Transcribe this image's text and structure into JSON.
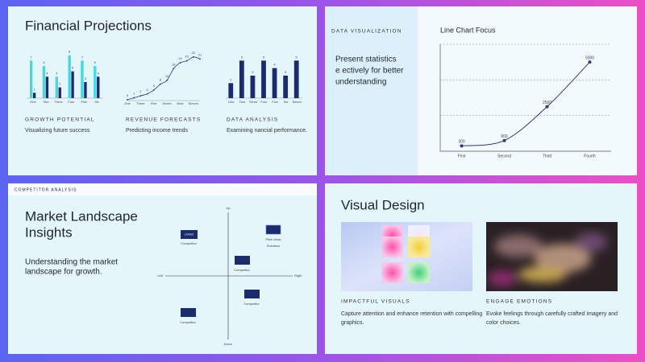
{
  "financial_slide": {
    "title": "Financial Projections",
    "panels": [
      {
        "heading": "GROWTH POTENTIAL",
        "text": "Visualizing future success"
      },
      {
        "heading": "REVENUE FORECASTS",
        "text": "Predicting income trends"
      },
      {
        "heading": "DATA ANALYSIS",
        "text": "Examining nancial performance."
      }
    ]
  },
  "visualization_slide": {
    "label": "DATA VISUALIZATION",
    "text_lines": [
      "Present statistics",
      "e ectively for better",
      "understanding"
    ]
  },
  "chart_data": [
    {
      "type": "bar",
      "categories": [
        "One",
        "Two",
        "Three",
        "Four",
        "Five",
        "Six"
      ],
      "series": [
        {
          "color": "#43d9e3",
          "values": [
            7,
            6,
            4,
            8,
            7,
            6
          ]
        },
        {
          "color": "#1c2a6e",
          "values": [
            1,
            4,
            2,
            5,
            3,
            4
          ]
        }
      ],
      "ylim": [
        0,
        9
      ]
    },
    {
      "type": "line",
      "categories": [
        "One",
        null,
        "Three",
        null,
        "Five",
        null,
        "Seven",
        null,
        "Nine",
        null,
        "Eleven",
        null
      ],
      "values": [
        0,
        1,
        2,
        3,
        5,
        8,
        10,
        16,
        19,
        20,
        22,
        21
      ],
      "color": "#2d3a7a",
      "ylim": [
        0,
        24
      ]
    },
    {
      "type": "bar",
      "categories": [
        "One",
        "Two",
        "Three",
        "Four",
        "Five",
        "Six",
        "Seven"
      ],
      "series": [
        {
          "color": "#1c2a6e",
          "values": [
            2,
            5,
            3,
            5,
            4,
            3,
            5
          ]
        }
      ],
      "ylim": [
        0,
        6
      ]
    },
    {
      "type": "line",
      "title": "Line Chart Focus",
      "categories": [
        "First",
        "Second",
        "Third",
        "Fourth"
      ],
      "values": [
        300,
        600,
        2500,
        5000
      ],
      "color": "#2d3a7a",
      "ylim": [
        0,
        6000
      ],
      "yticks": [
        0,
        2000,
        4000,
        6000
      ],
      "grid": true
    }
  ],
  "competitor_slide": {
    "label": "COMPETITOR ANALYSIS",
    "title_lines": [
      "Market Landscape",
      "Insights"
    ],
    "text_lines": [
      "Understanding the market",
      "landscape for growth."
    ],
    "axes": {
      "up": "Up",
      "down": "Down",
      "left": "Left",
      "right": "Right"
    },
    "items": [
      {
        "box": "LOGO",
        "label_lines": [
          "Competitor"
        ]
      },
      {
        "label_lines": [
          "Pitch Deck",
          "Solutions"
        ]
      },
      {
        "label_lines": [
          "Competitor"
        ]
      },
      {
        "label_lines": [
          "Competitor"
        ]
      },
      {
        "label_lines": [
          "Competitor"
        ]
      }
    ]
  },
  "design_slide": {
    "title": "Visual Design",
    "cards": [
      {
        "heading": "IMPACTFUL VISUALS",
        "text_lines": [
          "Capture attention and enhance retention with compelling",
          "graphics."
        ]
      },
      {
        "heading": "ENGAGE EMOTIONS",
        "text_lines": [
          "Evoke feelings through carefully crafted imagery and",
          "color choices."
        ]
      }
    ]
  }
}
